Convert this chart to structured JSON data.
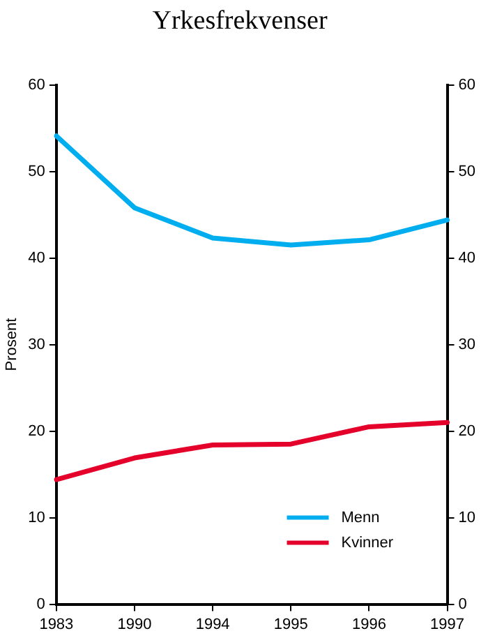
{
  "chart_data": {
    "type": "line",
    "title": "Yrkesfrekvenser",
    "ylabel": "Prosent",
    "categories": [
      "1983",
      "1990",
      "1994",
      "1995",
      "1996",
      "1997"
    ],
    "series": [
      {
        "name": "Menn",
        "color": "#00aeef",
        "values": [
          54.1,
          45.8,
          42.3,
          41.5,
          42.1,
          44.4
        ]
      },
      {
        "name": "Kvinner",
        "color": "#e4002b",
        "values": [
          14.4,
          16.9,
          18.4,
          18.5,
          20.5,
          21.0
        ]
      }
    ],
    "ylim": [
      0,
      60
    ],
    "yticks": [
      0,
      10,
      20,
      30,
      40,
      50,
      60
    ],
    "y2lim": [
      0,
      60
    ],
    "y2ticks": [
      0,
      10,
      20,
      30,
      40,
      50,
      60
    ],
    "grid": false,
    "legend": "bottom right",
    "marker": "none",
    "line_style": "solid"
  }
}
